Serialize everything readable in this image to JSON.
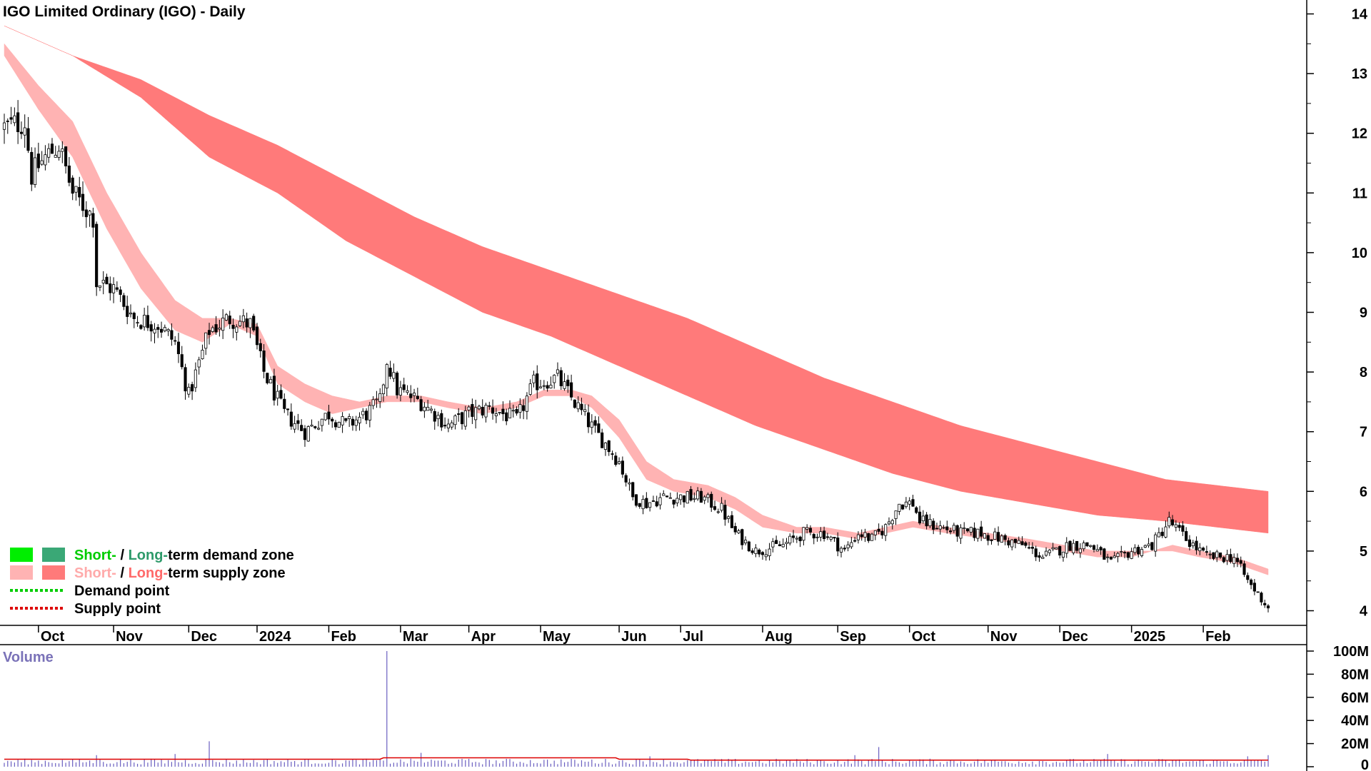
{
  "title": "IGO Limited Ordinary (IGO) - Daily",
  "volume_label": "Volume",
  "legend": {
    "demand_short": "Short-",
    "demand_sep": " / ",
    "demand_long": "Long-",
    "demand_rest": "term demand zone",
    "supply_short": "Short-",
    "supply_sep": " / ",
    "supply_long": "Long-",
    "supply_rest": "term supply zone",
    "demand_point": "Demand point",
    "supply_point": "Supply point"
  },
  "colors": {
    "short_demand": "#00ee00",
    "long_demand": "#3aa876",
    "short_supply": "#ffb3b3",
    "long_supply": "#ff7a7a",
    "supply_accent": "#ff6a1a",
    "demand_point": "#00cc00",
    "supply_point": "#dd0000",
    "volume_bar": "#6a5fc0",
    "volume_avg": "#dd0000",
    "volume_label": "#7a72b8"
  },
  "chart_data": {
    "type": "candlestick",
    "price_axis": {
      "ticks": [
        4,
        5,
        6,
        7,
        8,
        9,
        10,
        11,
        12,
        13,
        14
      ],
      "range": [
        3.8,
        14.2
      ],
      "scale": "linear"
    },
    "volume_axis": {
      "ticks": [
        "0",
        "20M",
        "40M",
        "60M",
        "80M",
        "100M"
      ],
      "values": [
        0,
        20,
        40,
        60,
        80,
        100
      ],
      "range": [
        0,
        100
      ],
      "unit": "M"
    },
    "x_ticks": [
      "Oct",
      "Nov",
      "Dec",
      "2024",
      "Feb",
      "Mar",
      "Apr",
      "May",
      "Jun",
      "Jul",
      "Aug",
      "Sep",
      "Oct",
      "Nov",
      "Dec",
      "2025",
      "Feb"
    ],
    "x_tick_index": [
      10,
      32,
      54,
      74,
      95,
      116,
      136,
      157,
      180,
      198,
      222,
      244,
      265,
      288,
      309,
      330,
      351
    ],
    "n_days": 371,
    "close_anchors": [
      [
        0,
        12.1
      ],
      [
        6,
        12.2
      ],
      [
        8,
        11.3
      ],
      [
        12,
        11.6
      ],
      [
        16,
        11.8
      ],
      [
        20,
        11.0
      ],
      [
        26,
        10.6
      ],
      [
        27,
        9.5
      ],
      [
        32,
        9.4
      ],
      [
        38,
        8.9
      ],
      [
        45,
        8.8
      ],
      [
        50,
        8.5
      ],
      [
        54,
        7.6
      ],
      [
        60,
        8.7
      ],
      [
        66,
        8.9
      ],
      [
        72,
        8.8
      ],
      [
        76,
        8.0
      ],
      [
        82,
        7.3
      ],
      [
        88,
        7.0
      ],
      [
        95,
        7.3
      ],
      [
        100,
        7.1
      ],
      [
        106,
        7.3
      ],
      [
        110,
        7.5
      ],
      [
        112,
        8.2
      ],
      [
        115,
        7.7
      ],
      [
        122,
        7.5
      ],
      [
        126,
        7.3
      ],
      [
        130,
        7.1
      ],
      [
        136,
        7.3
      ],
      [
        142,
        7.4
      ],
      [
        150,
        7.2
      ],
      [
        155,
        7.8
      ],
      [
        162,
        7.9
      ],
      [
        168,
        7.4
      ],
      [
        173,
        7.0
      ],
      [
        176,
        6.8
      ],
      [
        180,
        6.5
      ],
      [
        184,
        5.9
      ],
      [
        188,
        5.8
      ],
      [
        193,
        5.9
      ],
      [
        198,
        5.9
      ],
      [
        204,
        5.9
      ],
      [
        210,
        5.7
      ],
      [
        214,
        5.3
      ],
      [
        220,
        5.0
      ],
      [
        228,
        5.1
      ],
      [
        234,
        5.3
      ],
      [
        240,
        5.3
      ],
      [
        246,
        5.0
      ],
      [
        250,
        5.3
      ],
      [
        254,
        5.2
      ],
      [
        258,
        5.4
      ],
      [
        262,
        5.8
      ],
      [
        266,
        5.8
      ],
      [
        268,
        5.5
      ],
      [
        274,
        5.4
      ],
      [
        280,
        5.3
      ],
      [
        286,
        5.3
      ],
      [
        292,
        5.2
      ],
      [
        298,
        5.1
      ],
      [
        304,
        4.9
      ],
      [
        308,
        5.0
      ],
      [
        312,
        5.1
      ],
      [
        318,
        5.1
      ],
      [
        324,
        4.8
      ],
      [
        330,
        5.0
      ],
      [
        336,
        5.1
      ],
      [
        341,
        5.5
      ],
      [
        346,
        5.2
      ],
      [
        352,
        4.9
      ],
      [
        360,
        4.9
      ],
      [
        364,
        4.5
      ],
      [
        368,
        4.2
      ],
      [
        370,
        4.05
      ]
    ],
    "long_supply_band": {
      "upper": [
        [
          0,
          13.8
        ],
        [
          20,
          13.3
        ],
        [
          40,
          12.9
        ],
        [
          60,
          12.3
        ],
        [
          80,
          11.8
        ],
        [
          100,
          11.2
        ],
        [
          120,
          10.6
        ],
        [
          140,
          10.1
        ],
        [
          160,
          9.7
        ],
        [
          180,
          9.3
        ],
        [
          200,
          8.9
        ],
        [
          220,
          8.4
        ],
        [
          240,
          7.9
        ],
        [
          260,
          7.5
        ],
        [
          280,
          7.1
        ],
        [
          300,
          6.8
        ],
        [
          320,
          6.5
        ],
        [
          340,
          6.2
        ],
        [
          370,
          6.0
        ]
      ],
      "lower": [
        [
          0,
          13.8
        ],
        [
          20,
          13.3
        ],
        [
          40,
          12.6
        ],
        [
          60,
          11.6
        ],
        [
          80,
          11.0
        ],
        [
          100,
          10.2
        ],
        [
          120,
          9.6
        ],
        [
          140,
          9.0
        ],
        [
          160,
          8.6
        ],
        [
          180,
          8.1
        ],
        [
          200,
          7.6
        ],
        [
          220,
          7.1
        ],
        [
          240,
          6.7
        ],
        [
          260,
          6.3
        ],
        [
          280,
          6.0
        ],
        [
          300,
          5.8
        ],
        [
          320,
          5.6
        ],
        [
          340,
          5.5
        ],
        [
          370,
          5.3
        ]
      ]
    },
    "short_supply_band": {
      "upper": [
        [
          0,
          13.5
        ],
        [
          10,
          12.8
        ],
        [
          20,
          12.2
        ],
        [
          30,
          11.0
        ],
        [
          40,
          10.0
        ],
        [
          50,
          9.2
        ],
        [
          58,
          8.9
        ],
        [
          66,
          8.9
        ],
        [
          74,
          8.8
        ],
        [
          80,
          8.1
        ],
        [
          88,
          7.8
        ],
        [
          96,
          7.6
        ],
        [
          104,
          7.5
        ],
        [
          112,
          7.6
        ],
        [
          122,
          7.6
        ],
        [
          130,
          7.5
        ],
        [
          140,
          7.4
        ],
        [
          150,
          7.5
        ],
        [
          158,
          7.7
        ],
        [
          166,
          7.7
        ],
        [
          172,
          7.6
        ],
        [
          180,
          7.2
        ],
        [
          188,
          6.5
        ],
        [
          196,
          6.2
        ],
        [
          206,
          6.1
        ],
        [
          214,
          5.9
        ],
        [
          222,
          5.6
        ],
        [
          232,
          5.4
        ],
        [
          240,
          5.4
        ],
        [
          250,
          5.3
        ],
        [
          258,
          5.4
        ],
        [
          266,
          5.5
        ],
        [
          276,
          5.4
        ],
        [
          288,
          5.3
        ],
        [
          300,
          5.2
        ],
        [
          310,
          5.1
        ],
        [
          320,
          5.0
        ],
        [
          330,
          5.0
        ],
        [
          336,
          5.0
        ],
        [
          342,
          5.1
        ],
        [
          350,
          5.0
        ],
        [
          360,
          4.9
        ],
        [
          370,
          4.7
        ]
      ],
      "lower": [
        [
          0,
          13.3
        ],
        [
          10,
          12.4
        ],
        [
          20,
          11.6
        ],
        [
          30,
          10.4
        ],
        [
          40,
          9.4
        ],
        [
          50,
          8.7
        ],
        [
          58,
          8.5
        ],
        [
          66,
          8.8
        ],
        [
          74,
          8.6
        ],
        [
          80,
          7.8
        ],
        [
          88,
          7.5
        ],
        [
          96,
          7.3
        ],
        [
          104,
          7.4
        ],
        [
          112,
          7.5
        ],
        [
          122,
          7.5
        ],
        [
          130,
          7.4
        ],
        [
          140,
          7.3
        ],
        [
          150,
          7.4
        ],
        [
          158,
          7.6
        ],
        [
          166,
          7.6
        ],
        [
          172,
          7.4
        ],
        [
          180,
          6.9
        ],
        [
          188,
          6.2
        ],
        [
          196,
          6.0
        ],
        [
          206,
          5.9
        ],
        [
          214,
          5.7
        ],
        [
          222,
          5.4
        ],
        [
          232,
          5.3
        ],
        [
          240,
          5.3
        ],
        [
          250,
          5.2
        ],
        [
          258,
          5.3
        ],
        [
          266,
          5.4
        ],
        [
          276,
          5.3
        ],
        [
          288,
          5.2
        ],
        [
          300,
          5.1
        ],
        [
          310,
          5.0
        ],
        [
          320,
          4.9
        ],
        [
          330,
          4.9
        ],
        [
          336,
          5.0
        ],
        [
          342,
          5.0
        ],
        [
          350,
          4.9
        ],
        [
          360,
          4.8
        ],
        [
          370,
          4.6
        ]
      ]
    },
    "volume_spikes": [
      [
        112,
        100
      ],
      [
        60,
        22
      ],
      [
        50,
        11
      ],
      [
        27,
        10
      ],
      [
        122,
        12
      ],
      [
        189,
        9
      ],
      [
        249,
        10
      ],
      [
        256,
        17
      ],
      [
        323,
        11
      ],
      [
        364,
        9
      ],
      [
        370,
        10
      ]
    ],
    "volume_avg": 6.5
  }
}
